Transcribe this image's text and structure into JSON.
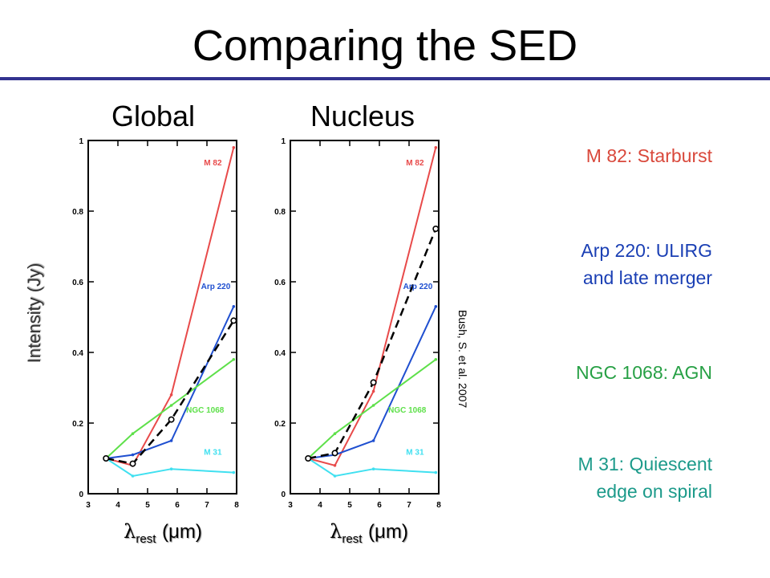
{
  "slide": {
    "title": "Comparing the SED",
    "citation": "Bush, S. et al. 2007",
    "ylabel": "Intensity (Jy)",
    "xlabel_symbol": "λ",
    "xlabel_sub": "rest",
    "xlabel_unit": "(μm)",
    "legend": [
      {
        "line1": "M 82: Starburst",
        "line2": "",
        "color": "#d9483b"
      },
      {
        "line1": "Arp 220: ULIRG",
        "line2": "and late merger",
        "color": "#1a3fb4"
      },
      {
        "line1": "NGC 1068: AGN",
        "line2": "",
        "color": "#27a045"
      },
      {
        "line1": "M 31: Quiescent",
        "line2": "edge on spiral",
        "color": "#1c9a8a"
      }
    ]
  },
  "chart_data": [
    {
      "type": "line",
      "title": "Global",
      "xlim": [
        3,
        8
      ],
      "ylim": [
        0,
        1
      ],
      "xticks": [
        3,
        4,
        5,
        6,
        7,
        8
      ],
      "yticks": [
        0,
        0.2,
        0.4,
        0.6,
        0.8,
        1
      ],
      "ytick_labels": [
        "0",
        "0.2",
        "0.4",
        "0.6",
        "0.8",
        "1"
      ],
      "series": [
        {
          "name": "M 82",
          "color": "#e84a4a",
          "style": "solid",
          "x": [
            3.6,
            4.5,
            5.8,
            7.9
          ],
          "y": [
            0.1,
            0.08,
            0.28,
            0.98
          ]
        },
        {
          "name": "Arp 220",
          "color": "#1f4fd0",
          "style": "solid",
          "x": [
            3.6,
            4.5,
            5.8,
            7.9
          ],
          "y": [
            0.1,
            0.11,
            0.15,
            0.53
          ]
        },
        {
          "name": "NGC 1068",
          "color": "#5ee04a",
          "style": "solid",
          "x": [
            3.6,
            4.5,
            5.8,
            7.9
          ],
          "y": [
            0.1,
            0.17,
            0.25,
            0.38
          ]
        },
        {
          "name": "M 31",
          "color": "#40e0f0",
          "style": "solid",
          "x": [
            3.6,
            4.5,
            5.8,
            7.9
          ],
          "y": [
            0.1,
            0.05,
            0.07,
            0.06
          ]
        },
        {
          "name": "",
          "color": "#000000",
          "style": "dashed",
          "x": [
            3.6,
            4.5,
            5.8,
            7.9
          ],
          "y": [
            0.1,
            0.085,
            0.21,
            0.49
          ]
        }
      ]
    },
    {
      "type": "line",
      "title": "Nucleus",
      "xlim": [
        3,
        8
      ],
      "ylim": [
        0,
        1
      ],
      "xticks": [
        3,
        4,
        5,
        6,
        7,
        8
      ],
      "yticks": [
        0,
        0.2,
        0.4,
        0.6,
        0.8,
        1
      ],
      "ytick_labels": [
        "0",
        "0.2",
        "0.4",
        "0.6",
        "0.8",
        "1"
      ],
      "series": [
        {
          "name": "M 82",
          "color": "#e84a4a",
          "style": "solid",
          "x": [
            3.6,
            4.5,
            5.8,
            7.9
          ],
          "y": [
            0.1,
            0.08,
            0.29,
            0.98
          ]
        },
        {
          "name": "Arp 220",
          "color": "#1f4fd0",
          "style": "solid",
          "x": [
            3.6,
            4.5,
            5.8,
            7.9
          ],
          "y": [
            0.1,
            0.11,
            0.15,
            0.53
          ]
        },
        {
          "name": "NGC 1068",
          "color": "#5ee04a",
          "style": "solid",
          "x": [
            3.6,
            4.5,
            5.8,
            7.9
          ],
          "y": [
            0.1,
            0.17,
            0.25,
            0.38
          ]
        },
        {
          "name": "M 31",
          "color": "#40e0f0",
          "style": "solid",
          "x": [
            3.6,
            4.5,
            5.8,
            7.9
          ],
          "y": [
            0.1,
            0.05,
            0.07,
            0.06
          ]
        },
        {
          "name": "",
          "color": "#000000",
          "style": "dashed",
          "x": [
            3.6,
            4.5,
            5.8,
            7.9
          ],
          "y": [
            0.1,
            0.115,
            0.315,
            0.75
          ]
        }
      ]
    }
  ]
}
